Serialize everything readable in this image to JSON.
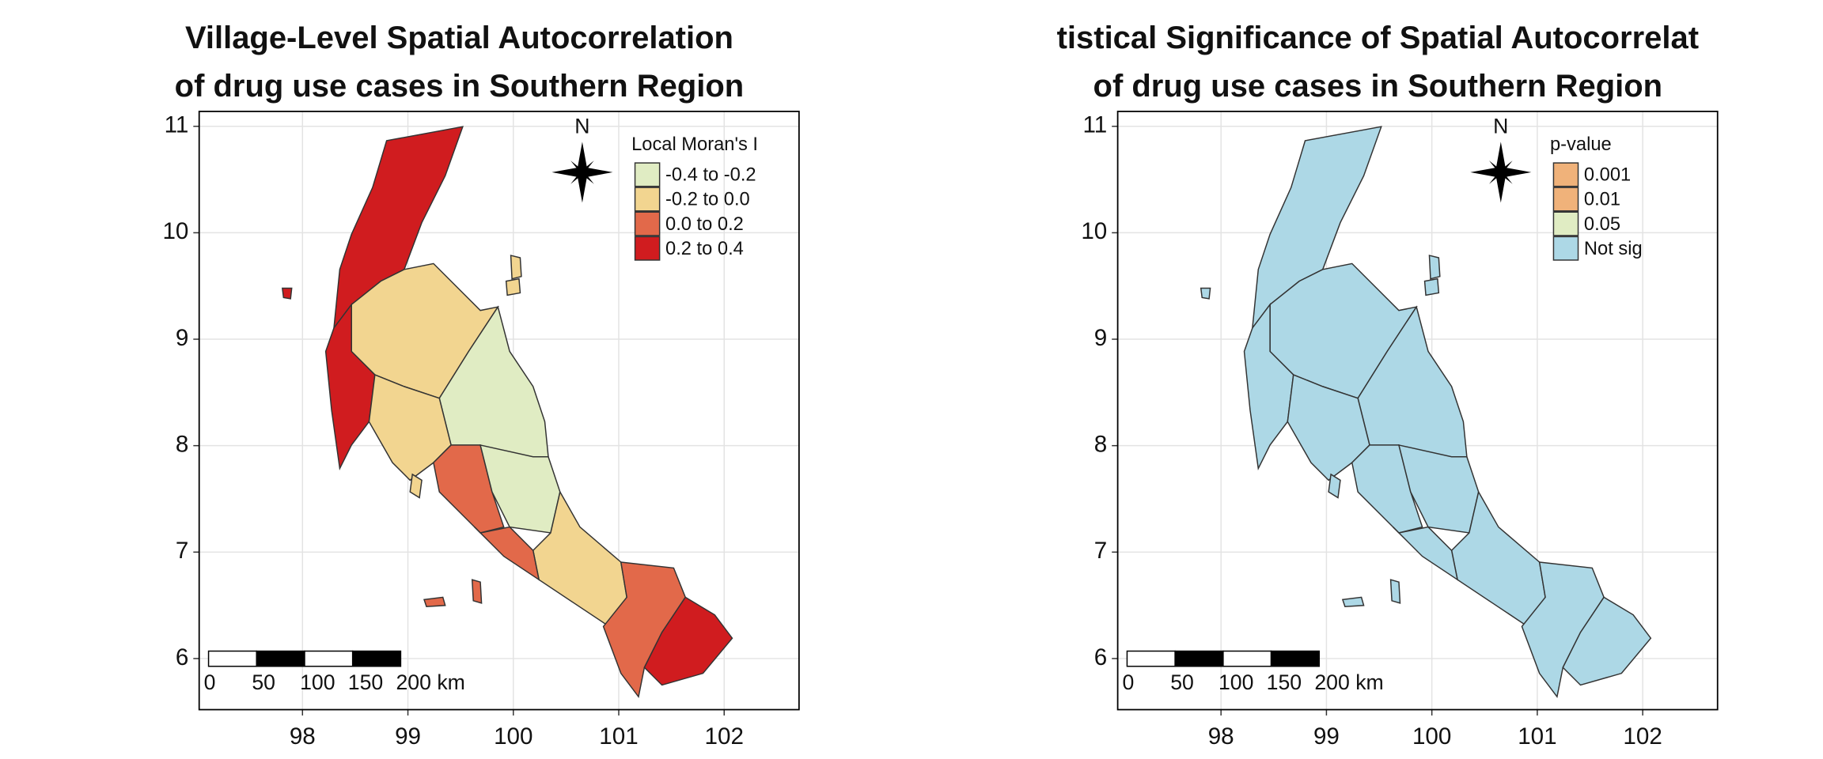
{
  "maps": [
    {
      "title": [
        "Village-Level Spatial Autocorrelation",
        "of drug use cases in Southern Region"
      ],
      "legend": {
        "title": "Local Moran's I",
        "items": [
          {
            "label": "-0.4 to -0.2",
            "color": "#e0ecc3"
          },
          {
            "label": "-0.2 to 0.0",
            "color": "#f2d590"
          },
          {
            "label": "0.0 to 0.2",
            "color": "#e2694a"
          },
          {
            "label": "0.2 to 0.4",
            "color": "#d01c1f"
          }
        ]
      },
      "north": "N",
      "scale_bar": [
        "0",
        "50",
        "100",
        "150",
        "200 km"
      ],
      "xlim": [
        97.02,
        102.71
      ],
      "ylim": [
        5.52,
        11.14
      ],
      "xticks": [
        98,
        99,
        100,
        101,
        102
      ],
      "yticks": [
        6,
        7,
        8,
        9,
        10,
        11
      ],
      "grid": true
    },
    {
      "title": [
        "tistical Significance of Spatial Autocorrelat",
        "of drug use cases in Southern Region"
      ],
      "legend": {
        "title": "p-value",
        "items": [
          {
            "label": "0.001",
            "color": "#f0b27a"
          },
          {
            "label": "0.01",
            "color": "#f0b27a"
          },
          {
            "label": "0.05",
            "color": "#e0ecc3"
          },
          {
            "label": "Not sig",
            "color": "#add8e6"
          }
        ]
      },
      "north": "N",
      "scale_bar": [
        "0",
        "50",
        "100",
        "150",
        "200 km"
      ],
      "xlim": [
        97.02,
        102.71
      ],
      "ylim": [
        5.52,
        11.14
      ],
      "xticks": [
        98,
        99,
        100,
        101,
        102
      ],
      "yticks": [
        6,
        7,
        8,
        9,
        10,
        11
      ],
      "grid": true
    }
  ]
}
